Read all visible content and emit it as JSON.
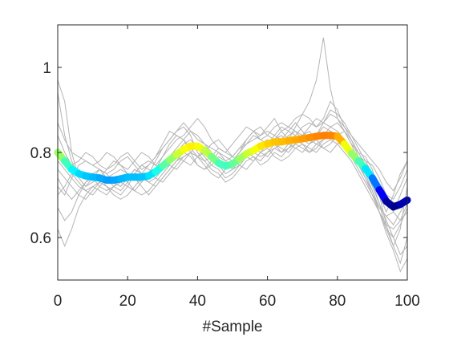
{
  "chart_data": {
    "type": "line",
    "title": "",
    "xlabel": "#Sample",
    "ylabel": "",
    "xlim": [
      0,
      100
    ],
    "ylim": [
      0.5,
      1.1
    ],
    "xticks": [
      0,
      20,
      40,
      60,
      80,
      100
    ],
    "xtick_labels": [
      "0",
      "20",
      "40",
      "60",
      "80",
      "100"
    ],
    "yticks": [
      0.6,
      0.8,
      1.0
    ],
    "ytick_labels": [
      "0.6",
      "0.8",
      "1"
    ],
    "grid": false,
    "legend": "none",
    "colors": {
      "background_series": "#b4b4b4",
      "mean_gradient": [
        "#00007f",
        "#0000ff",
        "#007fff",
        "#00ffff",
        "#7fff7f",
        "#ffff00",
        "#ff7f00"
      ],
      "axis": "#262626",
      "plot_bg": "#ffffff"
    },
    "mean_series": {
      "x": [
        0,
        2,
        4,
        6,
        8,
        10,
        12,
        14,
        16,
        18,
        20,
        22,
        24,
        26,
        28,
        30,
        32,
        34,
        36,
        38,
        40,
        42,
        44,
        46,
        48,
        50,
        52,
        54,
        56,
        58,
        60,
        62,
        64,
        66,
        68,
        70,
        72,
        74,
        76,
        78,
        80,
        82,
        84,
        86,
        88,
        90,
        92,
        94,
        96,
        98,
        100
      ],
      "y": [
        0.8,
        0.78,
        0.76,
        0.75,
        0.745,
        0.742,
        0.74,
        0.735,
        0.735,
        0.738,
        0.742,
        0.742,
        0.742,
        0.745,
        0.755,
        0.768,
        0.782,
        0.795,
        0.807,
        0.815,
        0.815,
        0.805,
        0.79,
        0.775,
        0.768,
        0.773,
        0.785,
        0.797,
        0.805,
        0.815,
        0.82,
        0.825,
        0.825,
        0.828,
        0.83,
        0.832,
        0.835,
        0.838,
        0.84,
        0.84,
        0.838,
        0.82,
        0.798,
        0.78,
        0.762,
        0.74,
        0.712,
        0.685,
        0.672,
        0.678,
        0.688
      ]
    },
    "background_series": [
      {
        "y": [
          0.97,
          0.92,
          0.8,
          0.74,
          0.72,
          0.74,
          0.76,
          0.75,
          0.73,
          0.72,
          0.74,
          0.76,
          0.75,
          0.77,
          0.79,
          0.82,
          0.85,
          0.84,
          0.83,
          0.8,
          0.77,
          0.76,
          0.78,
          0.8,
          0.79,
          0.78,
          0.8,
          0.83,
          0.85,
          0.84,
          0.86,
          0.88,
          0.85,
          0.83,
          0.86,
          0.89,
          0.92,
          0.97,
          1.07,
          0.95,
          0.88,
          0.85,
          0.82,
          0.8,
          0.79,
          0.76,
          0.7,
          0.66,
          0.7,
          0.75,
          0.78
        ]
      },
      {
        "y": [
          0.94,
          0.84,
          0.78,
          0.74,
          0.72,
          0.73,
          0.74,
          0.76,
          0.78,
          0.77,
          0.75,
          0.74,
          0.73,
          0.75,
          0.78,
          0.81,
          0.83,
          0.85,
          0.86,
          0.84,
          0.8,
          0.78,
          0.79,
          0.81,
          0.8,
          0.79,
          0.81,
          0.82,
          0.84,
          0.83,
          0.82,
          0.84,
          0.86,
          0.85,
          0.84,
          0.86,
          0.87,
          0.86,
          0.88,
          0.92,
          0.9,
          0.86,
          0.83,
          0.8,
          0.77,
          0.73,
          0.68,
          0.62,
          0.58,
          0.62,
          0.72
        ]
      },
      {
        "y": [
          0.84,
          0.8,
          0.77,
          0.76,
          0.74,
          0.75,
          0.76,
          0.74,
          0.72,
          0.71,
          0.73,
          0.75,
          0.77,
          0.76,
          0.75,
          0.77,
          0.79,
          0.81,
          0.83,
          0.85,
          0.84,
          0.82,
          0.8,
          0.78,
          0.77,
          0.78,
          0.8,
          0.82,
          0.83,
          0.84,
          0.85,
          0.84,
          0.83,
          0.85,
          0.87,
          0.85,
          0.83,
          0.84,
          0.86,
          0.85,
          0.84,
          0.82,
          0.8,
          0.79,
          0.78,
          0.77,
          0.74,
          0.7,
          0.66,
          0.64,
          0.68
        ]
      },
      {
        "y": [
          0.78,
          0.76,
          0.74,
          0.72,
          0.71,
          0.72,
          0.73,
          0.74,
          0.75,
          0.76,
          0.75,
          0.74,
          0.72,
          0.7,
          0.72,
          0.74,
          0.76,
          0.78,
          0.79,
          0.8,
          0.82,
          0.81,
          0.79,
          0.77,
          0.75,
          0.76,
          0.78,
          0.8,
          0.81,
          0.82,
          0.83,
          0.82,
          0.8,
          0.81,
          0.83,
          0.84,
          0.85,
          0.83,
          0.81,
          0.82,
          0.84,
          0.85,
          0.83,
          0.79,
          0.76,
          0.72,
          0.68,
          0.64,
          0.6,
          0.56,
          0.58
        ]
      },
      {
        "y": [
          0.72,
          0.7,
          0.74,
          0.77,
          0.78,
          0.77,
          0.76,
          0.75,
          0.76,
          0.78,
          0.79,
          0.77,
          0.75,
          0.74,
          0.76,
          0.79,
          0.82,
          0.84,
          0.83,
          0.81,
          0.79,
          0.8,
          0.82,
          0.83,
          0.81,
          0.79,
          0.78,
          0.79,
          0.81,
          0.8,
          0.79,
          0.81,
          0.82,
          0.84,
          0.85,
          0.83,
          0.82,
          0.84,
          0.87,
          0.9,
          0.89,
          0.87,
          0.84,
          0.81,
          0.78,
          0.75,
          0.7,
          0.63,
          0.58,
          0.54,
          0.6
        ]
      },
      {
        "y": [
          0.67,
          0.64,
          0.66,
          0.7,
          0.73,
          0.75,
          0.74,
          0.72,
          0.71,
          0.7,
          0.72,
          0.75,
          0.77,
          0.78,
          0.77,
          0.76,
          0.78,
          0.8,
          0.82,
          0.83,
          0.81,
          0.79,
          0.77,
          0.76,
          0.74,
          0.75,
          0.77,
          0.79,
          0.78,
          0.8,
          0.82,
          0.83,
          0.84,
          0.82,
          0.81,
          0.8,
          0.82,
          0.83,
          0.84,
          0.86,
          0.87,
          0.85,
          0.82,
          0.78,
          0.74,
          0.7,
          0.66,
          0.61,
          0.57,
          0.52,
          0.55
        ]
      },
      {
        "y": [
          0.62,
          0.58,
          0.62,
          0.67,
          0.7,
          0.72,
          0.71,
          0.7,
          0.72,
          0.73,
          0.72,
          0.71,
          0.73,
          0.75,
          0.74,
          0.73,
          0.75,
          0.77,
          0.79,
          0.8,
          0.79,
          0.77,
          0.75,
          0.74,
          0.76,
          0.78,
          0.77,
          0.76,
          0.78,
          0.8,
          0.81,
          0.79,
          0.78,
          0.79,
          0.81,
          0.82,
          0.81,
          0.8,
          0.82,
          0.83,
          0.82,
          0.8,
          0.78,
          0.75,
          0.72,
          0.69,
          0.66,
          0.63,
          0.62,
          0.64,
          0.66
        ]
      },
      {
        "y": [
          0.76,
          0.74,
          0.72,
          0.7,
          0.69,
          0.71,
          0.73,
          0.72,
          0.7,
          0.69,
          0.7,
          0.72,
          0.74,
          0.73,
          0.72,
          0.74,
          0.76,
          0.78,
          0.8,
          0.79,
          0.77,
          0.76,
          0.77,
          0.79,
          0.78,
          0.76,
          0.77,
          0.79,
          0.8,
          0.79,
          0.8,
          0.82,
          0.81,
          0.8,
          0.82,
          0.84,
          0.83,
          0.82,
          0.83,
          0.85,
          0.84,
          0.82,
          0.8,
          0.77,
          0.74,
          0.71,
          0.67,
          0.65,
          0.66,
          0.7,
          0.74
        ]
      },
      {
        "y": [
          0.81,
          0.79,
          0.77,
          0.78,
          0.8,
          0.79,
          0.77,
          0.76,
          0.77,
          0.79,
          0.8,
          0.78,
          0.76,
          0.77,
          0.79,
          0.81,
          0.83,
          0.85,
          0.87,
          0.85,
          0.83,
          0.82,
          0.81,
          0.8,
          0.78,
          0.79,
          0.81,
          0.83,
          0.85,
          0.86,
          0.84,
          0.83,
          0.85,
          0.86,
          0.85,
          0.84,
          0.86,
          0.88,
          0.87,
          0.86,
          0.85,
          0.83,
          0.81,
          0.79,
          0.77,
          0.75,
          0.72,
          0.7,
          0.69,
          0.72,
          0.76
        ]
      },
      {
        "y": [
          0.7,
          0.72,
          0.75,
          0.73,
          0.71,
          0.7,
          0.72,
          0.74,
          0.73,
          0.72,
          0.74,
          0.76,
          0.75,
          0.73,
          0.74,
          0.76,
          0.78,
          0.79,
          0.78,
          0.77,
          0.79,
          0.81,
          0.8,
          0.78,
          0.76,
          0.77,
          0.79,
          0.8,
          0.79,
          0.78,
          0.8,
          0.81,
          0.8,
          0.82,
          0.83,
          0.82,
          0.8,
          0.81,
          0.83,
          0.84,
          0.83,
          0.81,
          0.79,
          0.76,
          0.73,
          0.7,
          0.67,
          0.65,
          0.63,
          0.66,
          0.69
        ]
      },
      {
        "y": [
          0.87,
          0.83,
          0.8,
          0.79,
          0.78,
          0.77,
          0.78,
          0.8,
          0.79,
          0.77,
          0.76,
          0.78,
          0.8,
          0.79,
          0.77,
          0.79,
          0.81,
          0.83,
          0.84,
          0.86,
          0.88,
          0.86,
          0.83,
          0.81,
          0.8,
          0.82,
          0.84,
          0.86,
          0.85,
          0.83,
          0.84,
          0.86,
          0.87,
          0.86,
          0.88,
          0.89,
          0.88,
          0.86,
          0.87,
          0.89,
          0.88,
          0.86,
          0.84,
          0.82,
          0.8,
          0.78,
          0.76,
          0.73,
          0.71,
          0.74,
          0.78
        ]
      },
      {
        "y": [
          0.74,
          0.71,
          0.69,
          0.71,
          0.73,
          0.74,
          0.72,
          0.71,
          0.72,
          0.74,
          0.73,
          0.71,
          0.7,
          0.71,
          0.73,
          0.75,
          0.77,
          0.76,
          0.78,
          0.8,
          0.79,
          0.78,
          0.76,
          0.75,
          0.73,
          0.74,
          0.76,
          0.78,
          0.79,
          0.77,
          0.78,
          0.8,
          0.79,
          0.81,
          0.82,
          0.81,
          0.8,
          0.82,
          0.81,
          0.8,
          0.82,
          0.83,
          0.81,
          0.78,
          0.75,
          0.71,
          0.66,
          0.62,
          0.6,
          0.63,
          0.67
        ]
      }
    ]
  }
}
